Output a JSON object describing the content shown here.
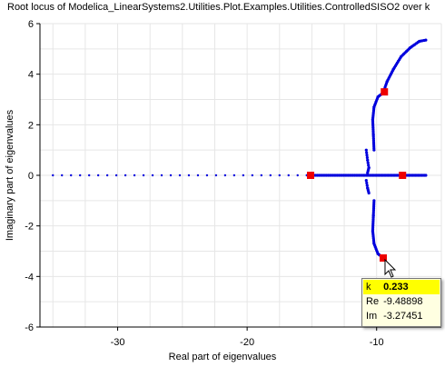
{
  "chart_data": {
    "type": "scatter",
    "title": "Root locus of Modelica_LinearSystems2.Utilities.Plot.Examples.Utilities.ControlledSISO2 over k",
    "xlabel": "Real part of eigenvalues",
    "ylabel": "Imaginary part of eigenvalues",
    "xlim": [
      -36,
      -5
    ],
    "ylim": [
      -6,
      6
    ],
    "xticks": [
      -30,
      -20,
      -10
    ],
    "yticks": [
      -6,
      -4,
      -2,
      0,
      2,
      4,
      6
    ],
    "grid": true,
    "colors": {
      "series": "#0000dd",
      "marker": "#ee0000",
      "tooltip_bg": "#ffffe1",
      "tooltip_highlight": "#ffff00"
    },
    "series": [
      {
        "description_hidden": true,
        "points": {
          "real_axis_branch_left": {
            "from": -35,
            "to": -15.3
          },
          "real_axis_branch_right": {
            "from": -11,
            "to": -6.2
          },
          "upper_branch": [
            [
              -10.2,
              1.0
            ],
            [
              -10.25,
              1.6
            ],
            [
              -10.3,
              2.2
            ],
            [
              -10.2,
              2.7
            ],
            [
              -9.9,
              3.1
            ],
            [
              -9.49,
              3.27
            ],
            [
              -9.2,
              3.7
            ],
            [
              -8.7,
              4.2
            ],
            [
              -8.1,
              4.7
            ],
            [
              -7.4,
              5.05
            ],
            [
              -6.7,
              5.3
            ],
            [
              -6.2,
              5.35
            ]
          ],
          "lower_branch": [
            [
              -10.2,
              -1.0
            ],
            [
              -10.25,
              -1.6
            ],
            [
              -10.3,
              -2.2
            ],
            [
              -10.2,
              -2.7
            ],
            [
              -9.9,
              -3.1
            ],
            [
              -9.49,
              -3.27
            ]
          ],
          "inner_loop_upper": [
            [
              -10.8,
              1.0
            ],
            [
              -10.7,
              0.6
            ],
            [
              -10.6,
              0.3
            ],
            [
              -10.7,
              0.1
            ]
          ],
          "inner_loop_lower": [
            [
              -10.8,
              -0.2
            ],
            [
              -10.7,
              -0.5
            ],
            [
              -10.6,
              -0.7
            ]
          ]
        }
      }
    ],
    "highlighted_points": [
      [
        -15.1,
        0
      ],
      [
        -8.0,
        0
      ],
      [
        -9.4,
        3.3
      ],
      [
        -9.49,
        -3.27
      ]
    ]
  },
  "tooltip": {
    "k_label": "k",
    "k_value": "0.233",
    "re_label": "Re",
    "re_value": "-9.48898",
    "im_label": "Im",
    "im_value": "-3.27451"
  }
}
